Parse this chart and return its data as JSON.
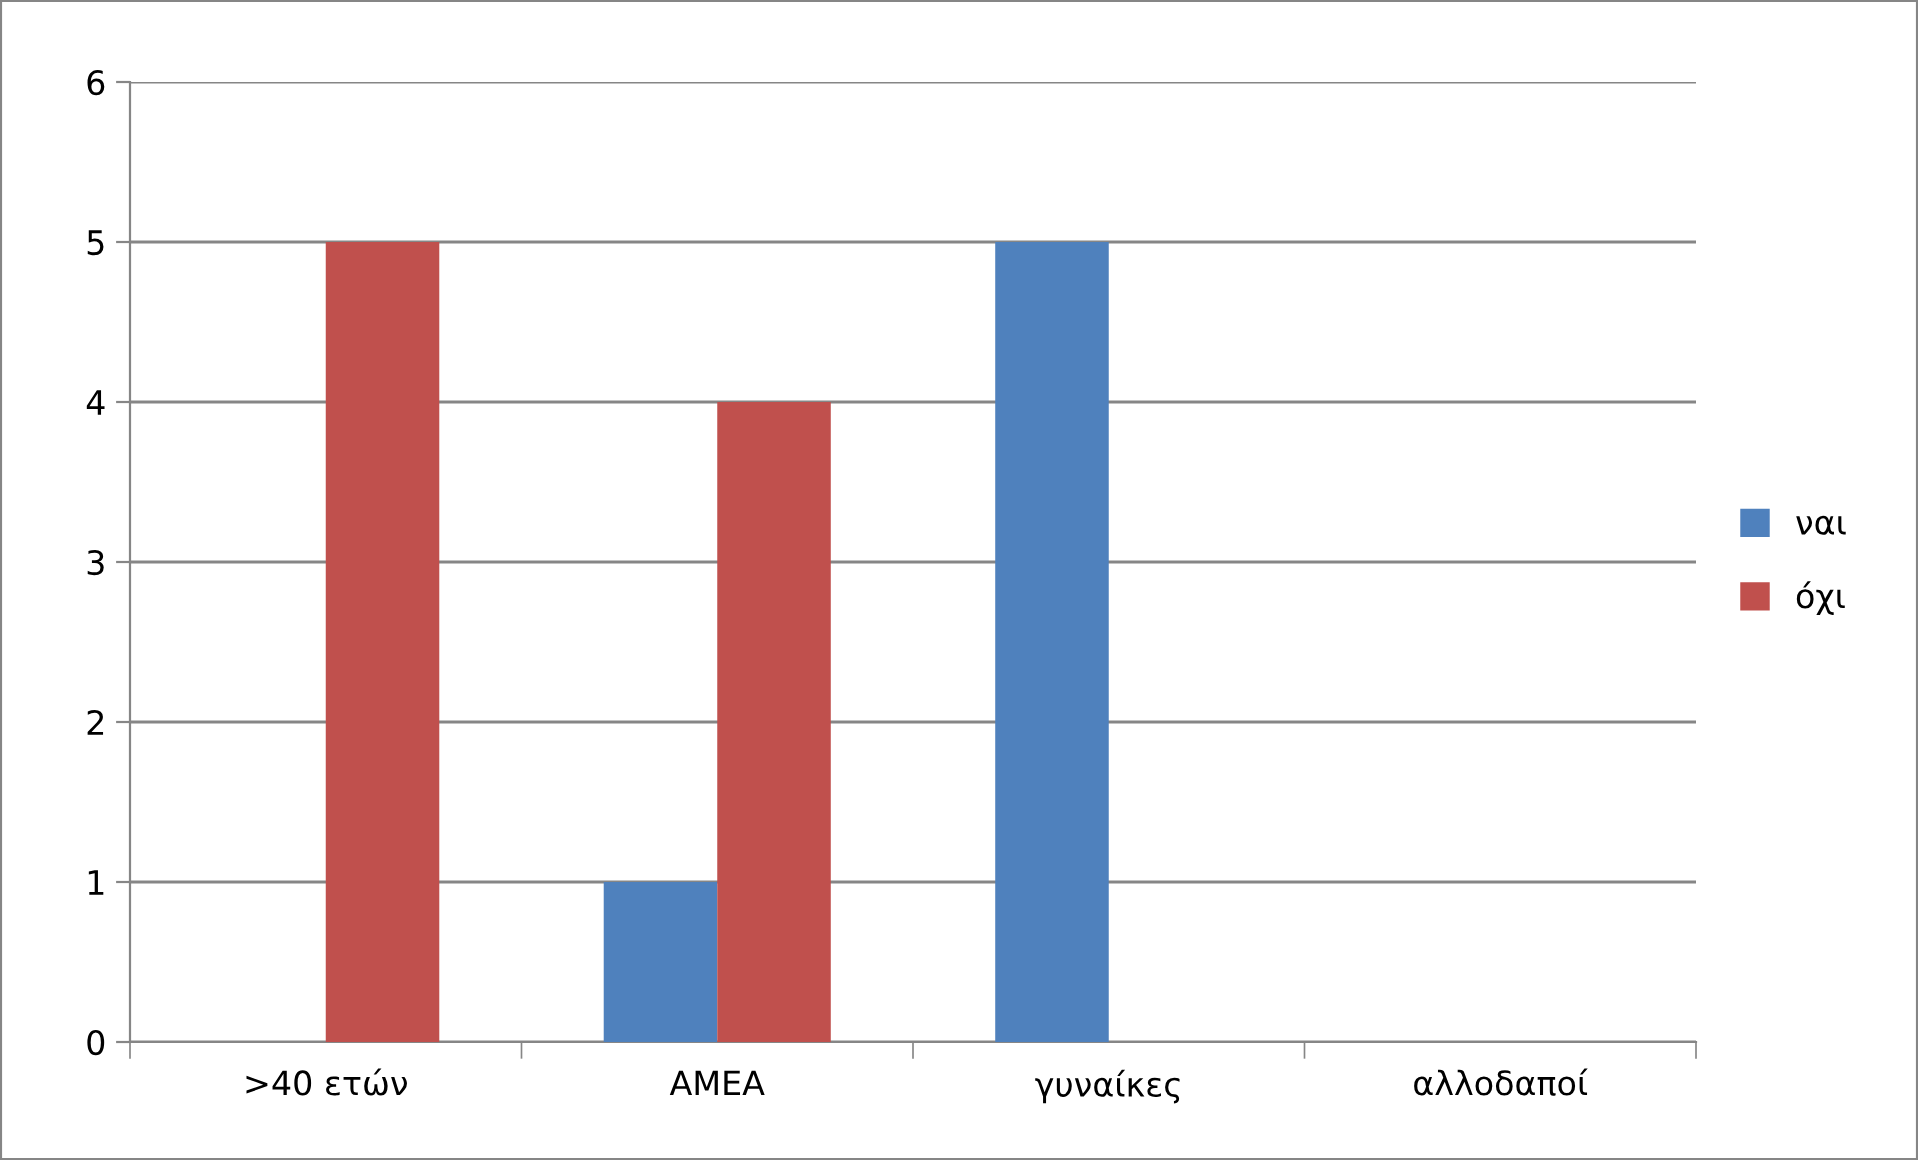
{
  "chart_data": {
    "type": "bar",
    "categories": [
      ">40 ετών",
      "ΑΜΕΑ",
      "γυναίκες",
      "αλλοδαποί"
    ],
    "series": [
      {
        "name": "ναι",
        "color": "#4f81bd",
        "values": [
          0,
          1,
          5,
          0
        ]
      },
      {
        "name": "όχι",
        "color": "#c0504d",
        "values": [
          5,
          4,
          0,
          0
        ]
      }
    ],
    "ylim": [
      0,
      6
    ],
    "yticks": [
      0,
      1,
      2,
      3,
      4,
      5,
      6
    ],
    "grid": "y",
    "legend": "right"
  }
}
